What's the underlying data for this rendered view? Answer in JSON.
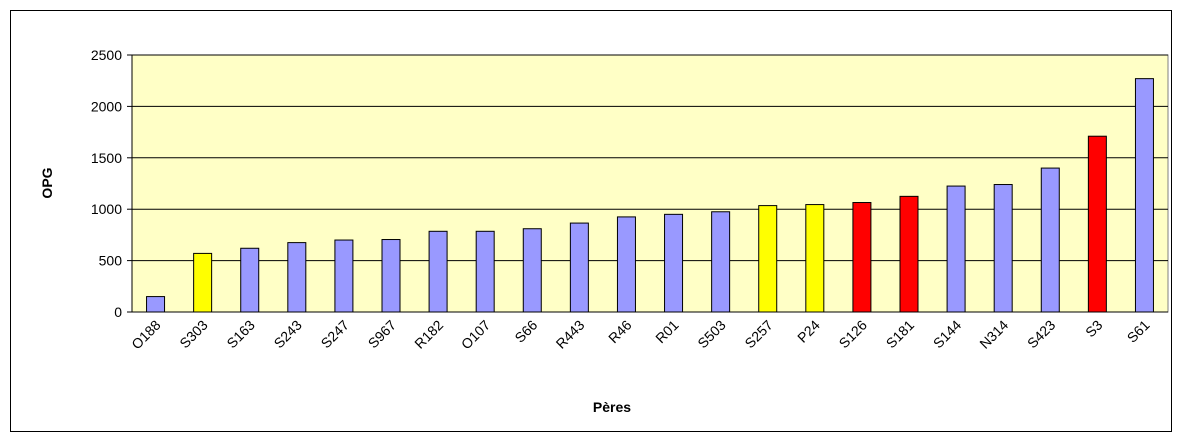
{
  "chart_data": {
    "type": "bar",
    "x_label": "Pères",
    "y_label": "OPG",
    "categories": [
      "O188",
      "S303",
      "S163",
      "S243",
      "S247",
      "S967",
      "R182",
      "O107",
      "S66",
      "R443",
      "R46",
      "R01",
      "S503",
      "S257",
      "P24",
      "S126",
      "S181",
      "S144",
      "N314",
      "S423",
      "S3",
      "S61"
    ],
    "values": [
      150,
      570,
      620,
      675,
      700,
      705,
      785,
      785,
      810,
      865,
      925,
      950,
      975,
      1035,
      1045,
      1065,
      1125,
      1225,
      1240,
      1400,
      1710,
      2270
    ],
    "colors": [
      "#9999ff",
      "#ffff00",
      "#9999ff",
      "#9999ff",
      "#9999ff",
      "#9999ff",
      "#9999ff",
      "#9999ff",
      "#9999ff",
      "#9999ff",
      "#9999ff",
      "#9999ff",
      "#9999ff",
      "#ffff00",
      "#ffff00",
      "#ff0000",
      "#ff0000",
      "#9999ff",
      "#9999ff",
      "#9999ff",
      "#ff0000",
      "#9999ff"
    ],
    "ylim": [
      0,
      2500
    ],
    "yticks": [
      0,
      500,
      1000,
      1500,
      2000,
      2500
    ],
    "grid": true
  }
}
